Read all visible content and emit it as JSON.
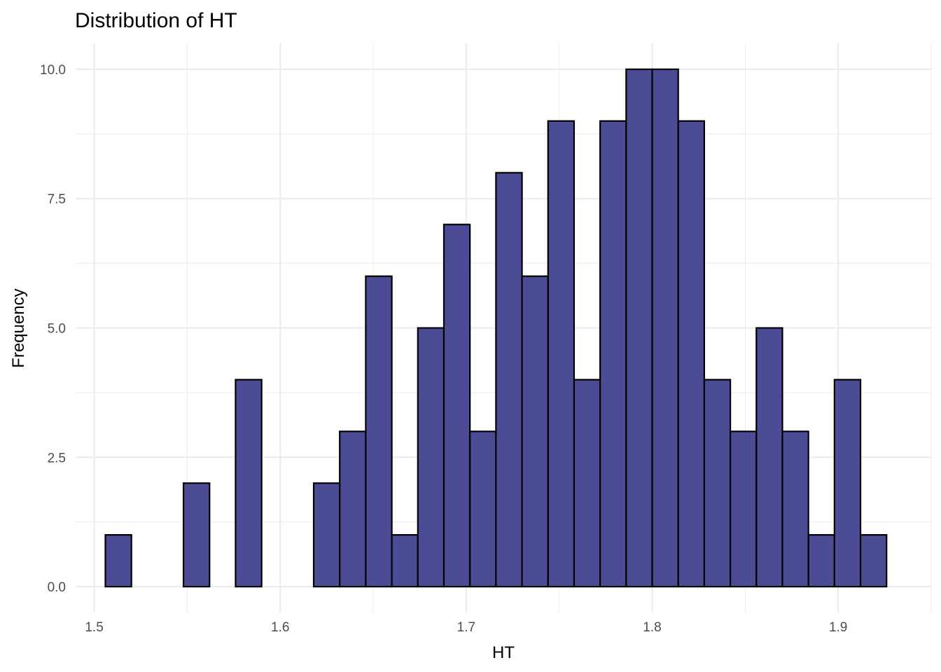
{
  "chart_data": {
    "type": "bar",
    "title": "Distribution of HT",
    "xlabel": "HT",
    "ylabel": "Frequency",
    "bin_width": 0.014,
    "bin_start": 1.506,
    "counts": [
      1,
      0,
      0,
      2,
      0,
      4,
      0,
      0,
      2,
      3,
      6,
      1,
      5,
      7,
      3,
      8,
      6,
      9,
      4,
      9,
      10,
      10,
      9,
      4,
      3,
      5,
      3,
      1,
      4,
      1
    ],
    "xlim": [
      1.49,
      1.95
    ],
    "ylim": [
      -0.5,
      10.5
    ],
    "x_ticks": [
      1.5,
      1.6,
      1.7,
      1.8,
      1.9
    ],
    "x_tick_labels": [
      "1.5",
      "1.6",
      "1.7",
      "1.8",
      "1.9"
    ],
    "y_ticks": [
      0,
      2.5,
      5,
      7.5,
      10
    ],
    "y_tick_labels": [
      "0.0",
      "2.5",
      "5.0",
      "7.5",
      "10.0"
    ],
    "bar_fill": "#4b4b96",
    "bar_stroke": "#000000",
    "grid": true,
    "grid_color": "#ebebeb",
    "background": "#ffffff"
  }
}
